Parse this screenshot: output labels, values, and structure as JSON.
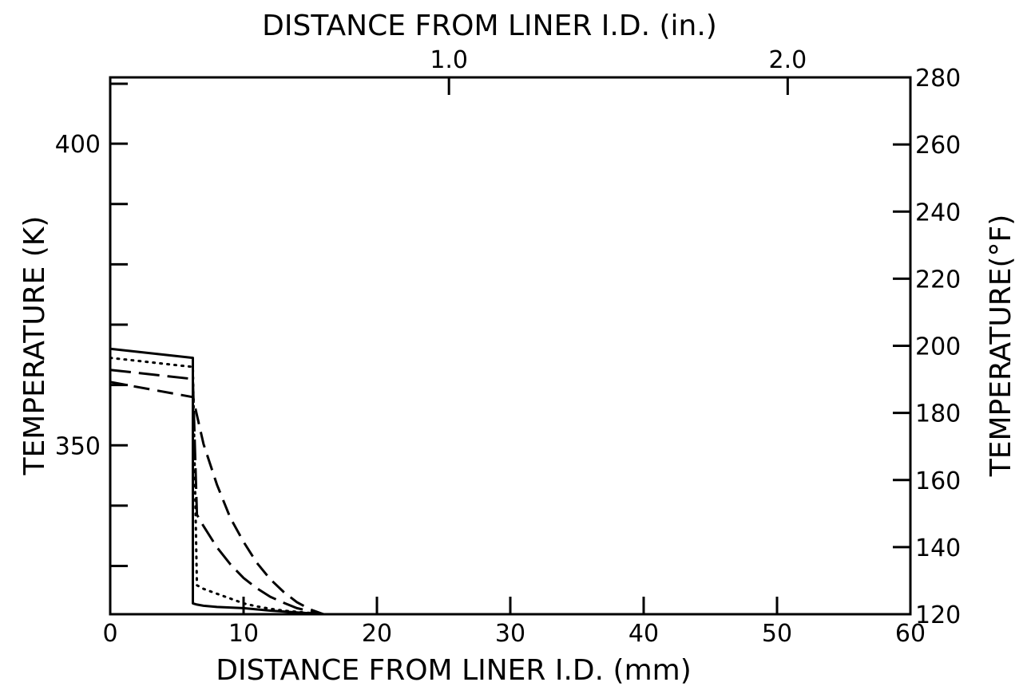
{
  "chart_data": {
    "type": "line",
    "xlabel": "DISTANCE FROM LINER I.D. (mm)",
    "x2label": "DISTANCE FROM LINER I.D. (in.)",
    "ylabel": "TEMPERATURE (K)",
    "y2label": "TEMPERATURE(°F)",
    "xlim": [
      0,
      60
    ],
    "ylim": [
      322,
      411
    ],
    "x_ticks": [
      0,
      10,
      20,
      30,
      40,
      50,
      60
    ],
    "x_tick_labels": [
      "0",
      "10",
      "20",
      "30",
      "40",
      "50",
      "60"
    ],
    "x2_ticks": [
      1.0,
      2.0
    ],
    "x2_tick_labels": [
      "1.0",
      "2.0"
    ],
    "y_ticks": [
      400,
      390,
      380,
      370,
      360,
      350,
      340,
      330
    ],
    "y_tick_labels": [
      "400",
      "350"
    ],
    "y_labeled_ticks": [
      400,
      350
    ],
    "y2_ticks_f": [
      280,
      260,
      240,
      220,
      200,
      180,
      160,
      140,
      120
    ],
    "y2_tick_labels": [
      "280",
      "260",
      "240",
      "220",
      "200",
      "180",
      "160",
      "140",
      "120"
    ],
    "grid": false,
    "series": [
      {
        "style": "solid",
        "x": [
          0,
          6.2,
          6.2,
          6.5,
          7,
          8,
          10,
          12,
          14,
          16
        ],
        "y": [
          366,
          364.5,
          323.8,
          323.6,
          323.4,
          323.2,
          323,
          322.6,
          322.3,
          322
        ]
      },
      {
        "style": "dotted",
        "x": [
          0,
          6.2,
          6.5,
          7,
          8,
          9,
          10,
          11,
          12,
          13,
          14,
          15,
          16
        ],
        "y": [
          364.5,
          363,
          326.8,
          326.2,
          325.4,
          324.6,
          323.8,
          323.3,
          322.9,
          322.6,
          322.4,
          322.2,
          322
        ]
      },
      {
        "style": "long-dash",
        "x": [
          0,
          6.2,
          6.5,
          7,
          8,
          9,
          10,
          11,
          12,
          13,
          14,
          15,
          16
        ],
        "y": [
          362.5,
          361,
          338.5,
          336.6,
          333.1,
          330.3,
          328,
          326.3,
          324.9,
          323.9,
          323,
          322.5,
          322
        ]
      },
      {
        "style": "dashed",
        "x": [
          0,
          6.2,
          6.5,
          7,
          8,
          9,
          10,
          11,
          12,
          13,
          14,
          15,
          16
        ],
        "y": [
          360.5,
          358,
          355,
          350.2,
          343.5,
          338,
          334,
          330.5,
          327.8,
          325.7,
          324,
          322.8,
          322
        ]
      }
    ]
  }
}
